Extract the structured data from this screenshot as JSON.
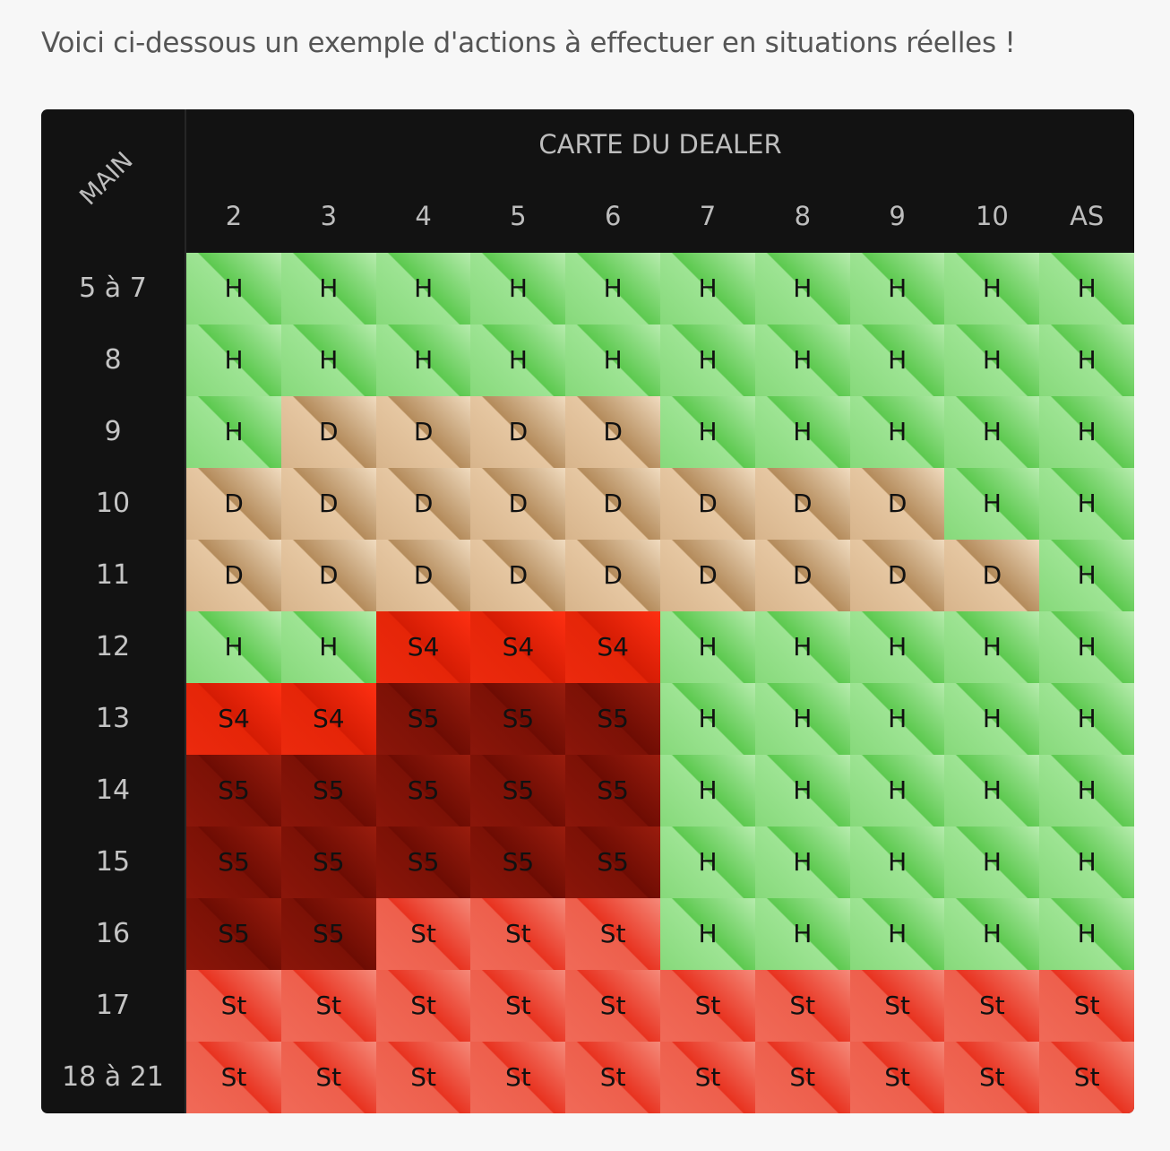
{
  "intro": "Voici ci-dessous un exemple d'actions à effectuer en situations réelles !",
  "chart": {
    "corner_label": "MAIN",
    "dealer_title": "CARTE DU DEALER",
    "columns": [
      "2",
      "3",
      "4",
      "5",
      "6",
      "7",
      "8",
      "9",
      "10",
      "AS"
    ],
    "rows": [
      {
        "label": "5 à 7",
        "cells": [
          "H",
          "H",
          "H",
          "H",
          "H",
          "H",
          "H",
          "H",
          "H",
          "H"
        ]
      },
      {
        "label": "8",
        "cells": [
          "H",
          "H",
          "H",
          "H",
          "H",
          "H",
          "H",
          "H",
          "H",
          "H"
        ]
      },
      {
        "label": "9",
        "cells": [
          "H",
          "D",
          "D",
          "D",
          "D",
          "H",
          "H",
          "H",
          "H",
          "H"
        ]
      },
      {
        "label": "10",
        "cells": [
          "D",
          "D",
          "D",
          "D",
          "D",
          "D",
          "D",
          "D",
          "H",
          "H"
        ]
      },
      {
        "label": "11",
        "cells": [
          "D",
          "D",
          "D",
          "D",
          "D",
          "D",
          "D",
          "D",
          "D",
          "H"
        ]
      },
      {
        "label": "12",
        "cells": [
          "H",
          "H",
          "S4",
          "S4",
          "S4",
          "H",
          "H",
          "H",
          "H",
          "H"
        ]
      },
      {
        "label": "13",
        "cells": [
          "S4",
          "S4",
          "S5",
          "S5",
          "S5",
          "H",
          "H",
          "H",
          "H",
          "H"
        ]
      },
      {
        "label": "14",
        "cells": [
          "S5",
          "S5",
          "S5",
          "S5",
          "S5",
          "H",
          "H",
          "H",
          "H",
          "H"
        ]
      },
      {
        "label": "15",
        "cells": [
          "S5",
          "S5",
          "S5",
          "S5",
          "S5",
          "H",
          "H",
          "H",
          "H",
          "H"
        ]
      },
      {
        "label": "16",
        "cells": [
          "S5",
          "S5",
          "St",
          "St",
          "St",
          "H",
          "H",
          "H",
          "H",
          "H"
        ]
      },
      {
        "label": "17",
        "cells": [
          "St",
          "St",
          "St",
          "St",
          "St",
          "St",
          "St",
          "St",
          "St",
          "St"
        ]
      },
      {
        "label": "18 à 21",
        "cells": [
          "St",
          "St",
          "St",
          "St",
          "St",
          "St",
          "St",
          "St",
          "St",
          "St"
        ]
      }
    ]
  },
  "colors": {
    "H": "#9ee494",
    "D": "#e6c7a2",
    "S4": "#e52508",
    "S5": "#7c1106",
    "St": "#ee5f4c",
    "panel": "#121212"
  }
}
